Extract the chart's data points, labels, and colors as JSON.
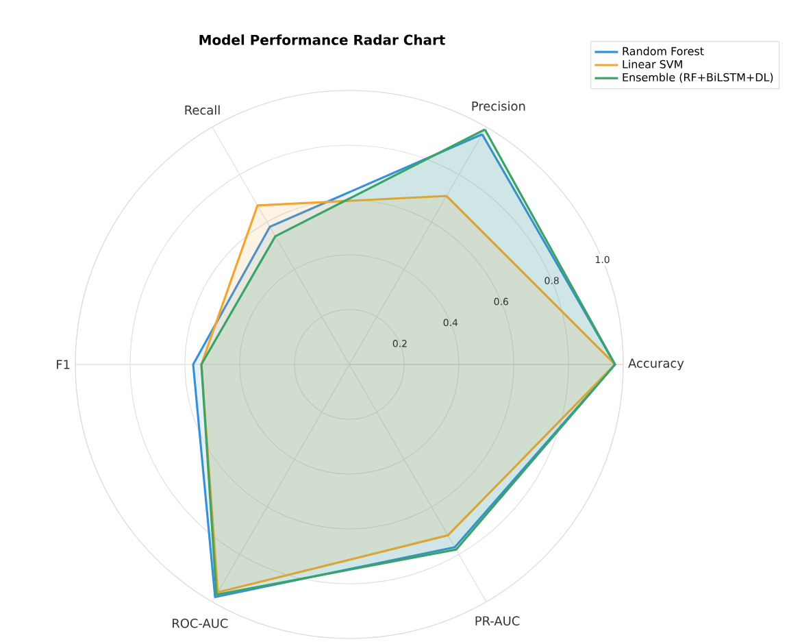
{
  "chart_data": {
    "type": "radar",
    "title": "Model Performance Radar Chart",
    "categories": [
      "Precision",
      "Accuracy",
      "PR-AUC",
      "ROC-AUC",
      "F1",
      "Recall"
    ],
    "series": [
      {
        "name": "Random Forest",
        "color": "#3a8fd9",
        "values": [
          0.97,
          0.97,
          0.77,
          0.98,
          0.57,
          0.58
        ]
      },
      {
        "name": "Linear SVM",
        "color": "#f0a630",
        "values": [
          0.71,
          0.97,
          0.72,
          0.96,
          0.54,
          0.67
        ]
      },
      {
        "name": "Ensemble (RF+BiLSTM+DL)",
        "color": "#3aa368",
        "values": [
          0.99,
          0.97,
          0.78,
          0.97,
          0.54,
          0.54
        ]
      }
    ],
    "ylim": [
      0,
      1.0
    ],
    "yticks": [
      0.2,
      0.4,
      0.6,
      0.8,
      {
        "value": 1.0,
        "label": "1.0"
      }
    ],
    "grid": true,
    "legend": "top right",
    "marker": "none",
    "line_style": "solid"
  }
}
